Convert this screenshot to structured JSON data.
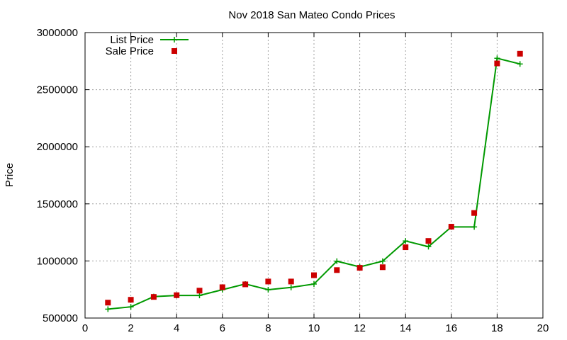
{
  "chart_data": {
    "type": "line",
    "title": "Nov 2018 San Mateo Condo Prices",
    "xlabel": "",
    "ylabel": "Price",
    "xlim": [
      0,
      20
    ],
    "ylim": [
      500000,
      3000000
    ],
    "x_ticks": [
      "0",
      "2",
      "4",
      "6",
      "8",
      "10",
      "12",
      "14",
      "16",
      "18",
      "20"
    ],
    "y_ticks": [
      "500000",
      "1000000",
      "1500000",
      "2000000",
      "2500000",
      "3000000"
    ],
    "grid": true,
    "legend_position": "top-left",
    "series": [
      {
        "name": "List Price",
        "style": "line-with-plus-markers",
        "color": "#009900",
        "x": [
          1,
          2,
          3,
          4,
          5,
          6,
          7,
          8,
          9,
          10,
          11,
          12,
          13,
          14,
          15,
          16,
          17,
          18,
          19
        ],
        "values": [
          578000,
          598000,
          688000,
          698000,
          698000,
          748000,
          798000,
          748000,
          768000,
          798000,
          998000,
          948000,
          998000,
          1175000,
          1125000,
          1298000,
          1298000,
          2775000,
          2725000
        ]
      },
      {
        "name": "Sale Price",
        "style": "square-markers",
        "color": "#cc0000",
        "x": [
          1,
          2,
          3,
          4,
          5,
          6,
          7,
          8,
          9,
          10,
          11,
          12,
          13,
          14,
          15,
          16,
          17,
          18,
          19
        ],
        "values": [
          635000,
          660000,
          685000,
          700000,
          740000,
          770000,
          795000,
          820000,
          820000,
          875000,
          920000,
          940000,
          945000,
          1120000,
          1175000,
          1300000,
          1420000,
          2730000,
          2815000
        ]
      }
    ]
  }
}
